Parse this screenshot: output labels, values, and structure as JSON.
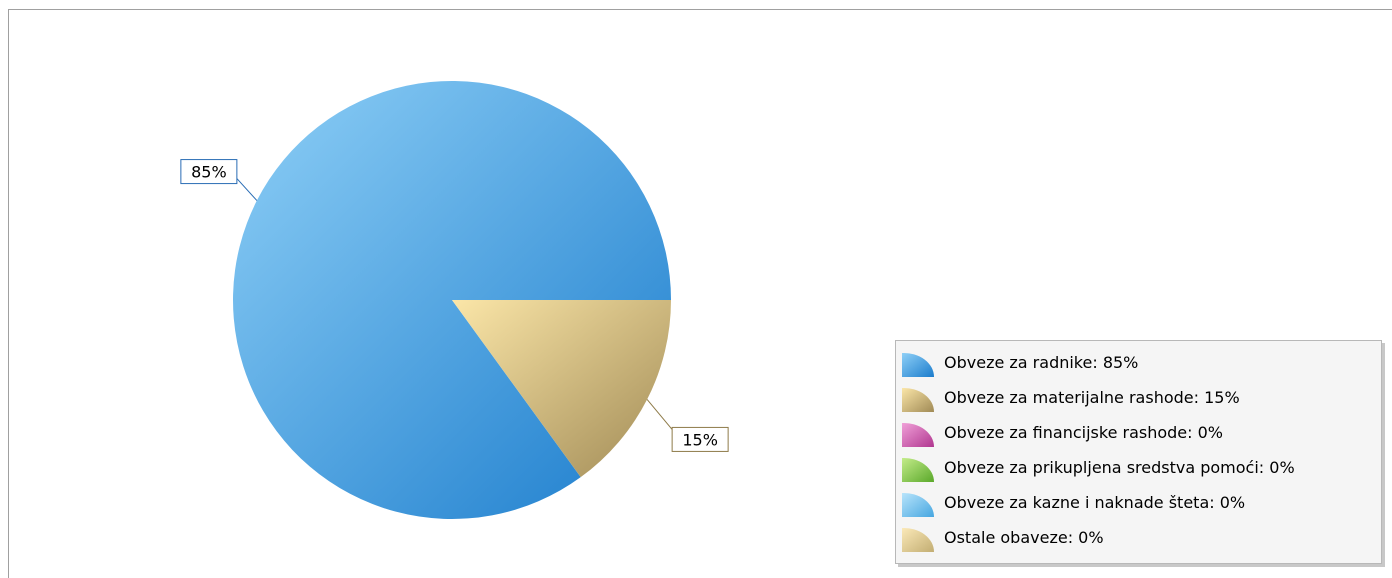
{
  "chart_data": {
    "type": "pie",
    "slices": [
      {
        "label": "Obveze za radnike",
        "value": 85,
        "legend_text": "Obveze za radnike: 85%",
        "data_label": "85%",
        "color_light": "#8fd0f7",
        "color_dark": "#1b7ccc",
        "label_color": "#2a6db5"
      },
      {
        "label": "Obveze za materijalne rashode",
        "value": 15,
        "legend_text": "Obveze za materijalne rashode: 15%",
        "data_label": "15%",
        "color_light": "#fbe6a8",
        "color_dark": "#a08a55",
        "label_color": "#8e7a48"
      },
      {
        "label": "Obveze za financijske rashode",
        "value": 0,
        "legend_text": "Obveze za financijske rashode: 0%",
        "data_label": "",
        "color_light": "#f0a0d8",
        "color_dark": "#b0368f",
        "label_color": "#b0368f"
      },
      {
        "label": "Obveze za prikupljena sredstva pomoći",
        "value": 0,
        "legend_text": "Obveze za prikupljena sredstva pomoći: 0%",
        "data_label": "",
        "color_light": "#c4ec8a",
        "color_dark": "#5aa82a",
        "label_color": "#5aa82a"
      },
      {
        "label": "Obveze za kazne i naknade šteta",
        "value": 0,
        "legend_text": "Obveze za kazne i naknade šteta: 0%",
        "data_label": "",
        "color_light": "#b8e4fb",
        "color_dark": "#46a6e0",
        "label_color": "#46a6e0"
      },
      {
        "label": "Ostale obaveze",
        "value": 0,
        "legend_text": "Ostale obaveze: 0%",
        "data_label": "",
        "color_light": "#fbe9b8",
        "color_dark": "#c2ad72",
        "label_color": "#c2ad72"
      }
    ],
    "legend_position": "right"
  }
}
